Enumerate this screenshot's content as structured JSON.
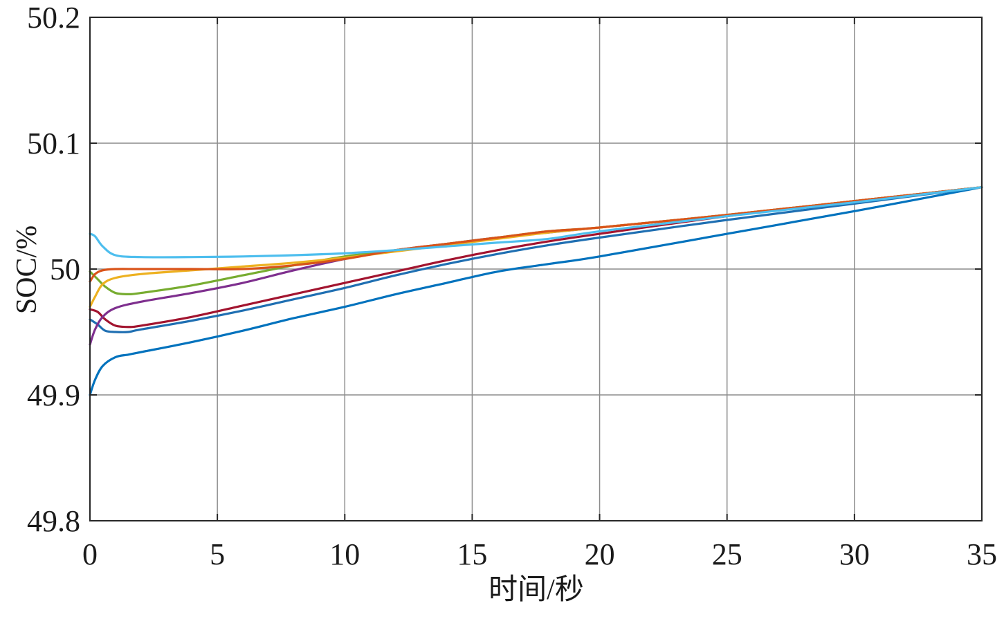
{
  "chart_data": {
    "type": "line",
    "title": "",
    "xlabel": "时间/秒",
    "ylabel": "SOC/%",
    "xlim": [
      0,
      35
    ],
    "ylim": [
      49.8,
      50.2
    ],
    "xticks": [
      0,
      5,
      10,
      15,
      20,
      25,
      30,
      35
    ],
    "yticks": [
      49.8,
      49.9,
      50,
      50.1,
      50.2
    ],
    "xtick_labels": [
      "0",
      "5",
      "10",
      "15",
      "20",
      "25",
      "30",
      "35"
    ],
    "ytick_labels": [
      "49.8",
      "49.9",
      "50",
      "50.1",
      "50.2"
    ],
    "grid": true,
    "legend": "none",
    "series": [
      {
        "color": "#4DBEEE",
        "x": [
          0,
          0.2,
          0.5,
          1,
          2,
          4,
          6,
          8,
          10,
          12,
          14,
          16,
          18,
          20,
          25,
          30,
          35
        ],
        "y": [
          50.028,
          50.026,
          50.018,
          50.011,
          50.0095,
          50.0095,
          50.01,
          50.011,
          50.0125,
          50.015,
          50.018,
          50.021,
          50.024,
          50.03,
          50.042,
          50.053,
          50.065
        ]
      },
      {
        "color": "#D95319",
        "x": [
          0,
          0.2,
          0.5,
          1,
          2,
          4,
          6,
          8,
          10,
          12,
          14,
          16,
          18,
          20,
          25,
          30,
          35
        ],
        "y": [
          49.99,
          49.996,
          49.999,
          50.0,
          50.0,
          50.0,
          50.0,
          50.003,
          50.008,
          50.015,
          50.02,
          50.025,
          50.03,
          50.033,
          50.043,
          50.054,
          50.065
        ]
      },
      {
        "color": "#EDB120",
        "x": [
          0,
          0.2,
          0.5,
          1,
          2,
          4,
          6,
          8,
          10,
          12,
          14,
          16,
          18,
          20,
          25,
          30,
          35
        ],
        "y": [
          49.97,
          49.978,
          49.988,
          49.993,
          49.996,
          49.999,
          50.002,
          50.005,
          50.009,
          50.014,
          50.019,
          50.024,
          50.029,
          50.033,
          50.043,
          50.054,
          50.065
        ]
      },
      {
        "color": "#77AC30",
        "x": [
          0,
          0.3,
          0.6,
          1,
          1.5,
          2,
          4,
          6,
          8,
          10,
          12,
          14,
          16,
          18,
          20,
          25,
          30,
          35
        ],
        "y": [
          49.998,
          49.992,
          49.986,
          49.981,
          49.98,
          49.981,
          49.987,
          49.995,
          50.003,
          50.01,
          50.015,
          50.02,
          50.025,
          50.03,
          50.033,
          50.043,
          50.054,
          50.065
        ]
      },
      {
        "color": "#7E2F8E",
        "x": [
          0,
          0.2,
          0.5,
          1,
          2,
          4,
          6,
          8,
          10,
          12,
          14,
          16,
          18,
          20,
          25,
          30,
          35
        ],
        "y": [
          49.94,
          49.952,
          49.962,
          49.969,
          49.974,
          49.981,
          49.989,
          49.999,
          50.008,
          50.015,
          50.02,
          50.025,
          50.029,
          50.033,
          50.043,
          50.054,
          50.065
        ]
      },
      {
        "color": "#A2142F",
        "x": [
          0,
          0.3,
          0.6,
          1,
          1.5,
          2,
          4,
          6,
          8,
          10,
          12,
          14,
          16,
          18,
          20,
          25,
          30,
          35
        ],
        "y": [
          49.968,
          49.966,
          49.96,
          49.955,
          49.954,
          49.955,
          49.962,
          49.971,
          49.98,
          49.989,
          49.998,
          50.007,
          50.015,
          50.022,
          50.028,
          50.042,
          50.054,
          50.065
        ]
      },
      {
        "color": "#1F6FB2",
        "x": [
          0,
          0.3,
          0.6,
          1,
          1.5,
          2,
          4,
          6,
          8,
          10,
          12,
          14,
          16,
          18,
          20,
          25,
          30,
          35
        ],
        "y": [
          49.96,
          49.956,
          49.951,
          49.95,
          49.95,
          49.952,
          49.959,
          49.967,
          49.976,
          49.985,
          49.995,
          50.004,
          50.012,
          50.019,
          50.025,
          50.039,
          50.052,
          50.065
        ]
      },
      {
        "color": "#0072BD",
        "x": [
          0,
          0.2,
          0.5,
          1,
          1.5,
          2,
          4,
          6,
          8,
          10,
          12,
          14,
          16,
          18,
          20,
          25,
          30,
          35
        ],
        "y": [
          49.9,
          49.912,
          49.923,
          49.93,
          49.932,
          49.934,
          49.942,
          49.951,
          49.961,
          49.97,
          49.98,
          49.989,
          49.998,
          50.004,
          50.01,
          50.028,
          50.046,
          50.065
        ]
      }
    ]
  }
}
